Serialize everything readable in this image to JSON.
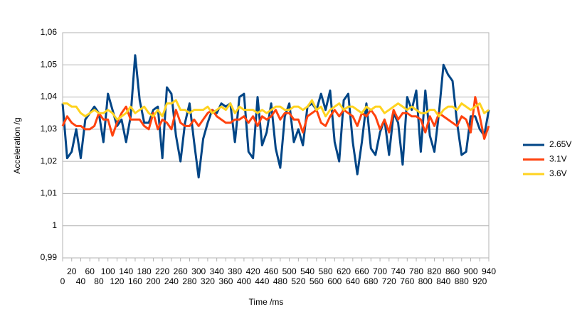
{
  "chart_data": {
    "type": "line",
    "x_label": "Time /ms",
    "y_label": "Acceleration /g",
    "x": [
      0,
      10,
      20,
      30,
      40,
      50,
      60,
      70,
      80,
      90,
      100,
      110,
      120,
      130,
      140,
      150,
      160,
      170,
      180,
      190,
      200,
      210,
      220,
      230,
      240,
      250,
      260,
      270,
      280,
      290,
      300,
      310,
      320,
      330,
      340,
      350,
      360,
      370,
      380,
      390,
      400,
      410,
      420,
      430,
      440,
      450,
      460,
      470,
      480,
      490,
      500,
      510,
      520,
      530,
      540,
      550,
      560,
      570,
      580,
      590,
      600,
      610,
      620,
      630,
      640,
      650,
      660,
      670,
      680,
      690,
      700,
      710,
      720,
      730,
      740,
      750,
      760,
      770,
      780,
      790,
      800,
      810,
      820,
      830,
      840,
      850,
      860,
      870,
      880,
      890,
      900,
      910,
      920,
      930,
      940
    ],
    "series": [
      {
        "name": "2.65V",
        "color": "#004586",
        "values": [
          1.038,
          1.021,
          1.023,
          1.03,
          1.021,
          1.033,
          1.035,
          1.037,
          1.035,
          1.026,
          1.041,
          1.036,
          1.031,
          1.033,
          1.026,
          1.034,
          1.053,
          1.039,
          1.032,
          1.032,
          1.036,
          1.037,
          1.021,
          1.043,
          1.041,
          1.028,
          1.02,
          1.032,
          1.038,
          1.026,
          1.015,
          1.027,
          1.032,
          1.036,
          1.035,
          1.038,
          1.037,
          1.038,
          1.026,
          1.04,
          1.041,
          1.023,
          1.021,
          1.04,
          1.025,
          1.029,
          1.038,
          1.024,
          1.018,
          1.034,
          1.038,
          1.026,
          1.03,
          1.025,
          1.037,
          1.038,
          1.036,
          1.041,
          1.036,
          1.042,
          1.026,
          1.02,
          1.039,
          1.041,
          1.026,
          1.016,
          1.026,
          1.038,
          1.024,
          1.022,
          1.029,
          1.033,
          1.022,
          1.035,
          1.032,
          1.019,
          1.04,
          1.036,
          1.042,
          1.023,
          1.042,
          1.028,
          1.023,
          1.035,
          1.05,
          1.047,
          1.045,
          1.032,
          1.022,
          1.023,
          1.034,
          1.034,
          1.03,
          1.028,
          1.036
        ]
      },
      {
        "name": "3.1V",
        "color": "#ff420e",
        "values": [
          1.031,
          1.034,
          1.032,
          1.031,
          1.031,
          1.03,
          1.03,
          1.031,
          1.035,
          1.033,
          1.033,
          1.028,
          1.032,
          1.035,
          1.037,
          1.033,
          1.033,
          1.033,
          1.031,
          1.03,
          1.035,
          1.03,
          1.033,
          1.032,
          1.03,
          1.036,
          1.032,
          1.031,
          1.031,
          1.033,
          1.031,
          1.033,
          1.035,
          1.036,
          1.034,
          1.033,
          1.032,
          1.032,
          1.033,
          1.033,
          1.034,
          1.032,
          1.034,
          1.031,
          1.034,
          1.033,
          1.034,
          1.036,
          1.033,
          1.035,
          1.035,
          1.033,
          1.033,
          1.029,
          1.034,
          1.035,
          1.036,
          1.032,
          1.031,
          1.034,
          1.036,
          1.034,
          1.036,
          1.035,
          1.034,
          1.031,
          1.035,
          1.034,
          1.036,
          1.034,
          1.03,
          1.033,
          1.029,
          1.036,
          1.033,
          1.035,
          1.035,
          1.034,
          1.034,
          1.033,
          1.029,
          1.034,
          1.031,
          1.035,
          1.034,
          1.033,
          1.032,
          1.031,
          1.034,
          1.033,
          1.029,
          1.04,
          1.034,
          1.027,
          1.031
        ]
      },
      {
        "name": "3.6V",
        "color": "#ffd320",
        "values": [
          1.038,
          1.038,
          1.037,
          1.037,
          1.035,
          1.034,
          1.035,
          1.036,
          1.035,
          1.035,
          1.036,
          1.035,
          1.033,
          1.034,
          1.035,
          1.037,
          1.035,
          1.036,
          1.037,
          1.035,
          1.034,
          1.036,
          1.034,
          1.038,
          1.038,
          1.039,
          1.036,
          1.036,
          1.035,
          1.036,
          1.036,
          1.036,
          1.037,
          1.035,
          1.036,
          1.037,
          1.036,
          1.038,
          1.035,
          1.037,
          1.036,
          1.036,
          1.036,
          1.035,
          1.036,
          1.035,
          1.036,
          1.037,
          1.037,
          1.036,
          1.036,
          1.037,
          1.037,
          1.036,
          1.037,
          1.039,
          1.036,
          1.037,
          1.034,
          1.036,
          1.037,
          1.038,
          1.036,
          1.037,
          1.037,
          1.036,
          1.035,
          1.037,
          1.036,
          1.037,
          1.037,
          1.035,
          1.036,
          1.037,
          1.038,
          1.037,
          1.036,
          1.037,
          1.036,
          1.035,
          1.035,
          1.036,
          1.036,
          1.034,
          1.036,
          1.037,
          1.037,
          1.036,
          1.038,
          1.037,
          1.036,
          1.037,
          1.038,
          1.035,
          1.036
        ]
      }
    ],
    "xlim": [
      0,
      940
    ],
    "xticks": [
      0,
      20,
      40,
      60,
      80,
      100,
      120,
      140,
      160,
      180,
      200,
      220,
      240,
      260,
      280,
      300,
      320,
      340,
      360,
      380,
      400,
      420,
      440,
      460,
      480,
      500,
      520,
      540,
      560,
      580,
      600,
      620,
      640,
      660,
      680,
      700,
      720,
      740,
      760,
      780,
      800,
      820,
      840,
      860,
      880,
      900,
      920,
      940
    ],
    "ylim": [
      0.99,
      1.06
    ],
    "yticks": [
      {
        "value": 0.99,
        "label": "0,99"
      },
      1,
      {
        "value": 1.01,
        "label": "1,01"
      },
      {
        "value": 1.02,
        "label": "1,02"
      },
      {
        "value": 1.03,
        "label": "1,03"
      },
      {
        "value": 1.04,
        "label": "1,04"
      },
      {
        "value": 1.05,
        "label": "1,05"
      },
      {
        "value": 1.06,
        "label": "1,06"
      }
    ],
    "grid": true,
    "legend": "right"
  }
}
